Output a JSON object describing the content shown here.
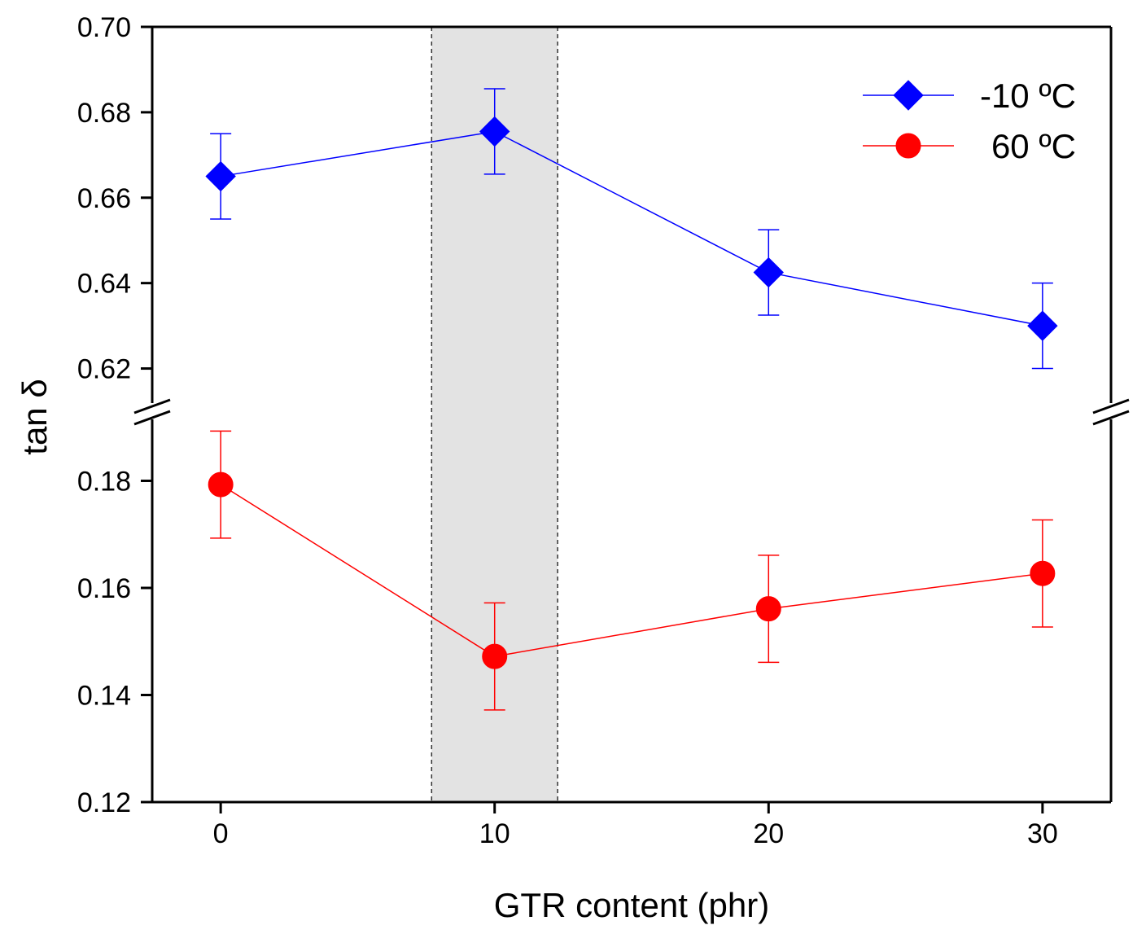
{
  "chart_data": {
    "type": "line",
    "title": "",
    "xlabel": "GTR content (phr)",
    "ylabel": "tan δ",
    "x": [
      0,
      10,
      20,
      30
    ],
    "xlim": [
      -2.5,
      32.5
    ],
    "xticks": [
      0,
      10,
      20,
      30
    ],
    "xtick_labels": [
      "0",
      "10",
      "20",
      "30"
    ],
    "axis_break": "between 0.18 and 0.62 on the y axis (double-slash marks)",
    "ylim_upper": [
      0.61,
      0.7
    ],
    "yticks_upper": [
      0.62,
      0.64,
      0.66,
      0.68,
      0.7
    ],
    "ytick_labels_upper": [
      "0.62",
      "0.64",
      "0.66",
      "0.68",
      "0.70"
    ],
    "ylim_lower": [
      0.12,
      0.193
    ],
    "yticks_lower": [
      0.12,
      0.14,
      0.16,
      0.18
    ],
    "ytick_labels_lower": [
      "0.12",
      "0.14",
      "0.16",
      "0.18"
    ],
    "shaded_region": {
      "x_range": [
        7.7,
        12.3
      ],
      "color": "#e3e3e3",
      "border": "dashed"
    },
    "grid": false,
    "legend_position": "top-right",
    "series": [
      {
        "name": "-10 ºC",
        "marker": "diamond",
        "color": "#0000ff",
        "panel": "upper",
        "values": [
          0.665,
          0.6755,
          0.6425,
          0.63
        ],
        "error": [
          0.01,
          0.01,
          0.01,
          0.01
        ]
      },
      {
        "name": "60 ºC",
        "marker": "circle",
        "color": "#ff0000",
        "panel": "lower",
        "values": [
          0.1793,
          0.1472,
          0.1561,
          0.1627
        ],
        "error": [
          0.01,
          0.01,
          0.01,
          0.01
        ]
      }
    ]
  }
}
